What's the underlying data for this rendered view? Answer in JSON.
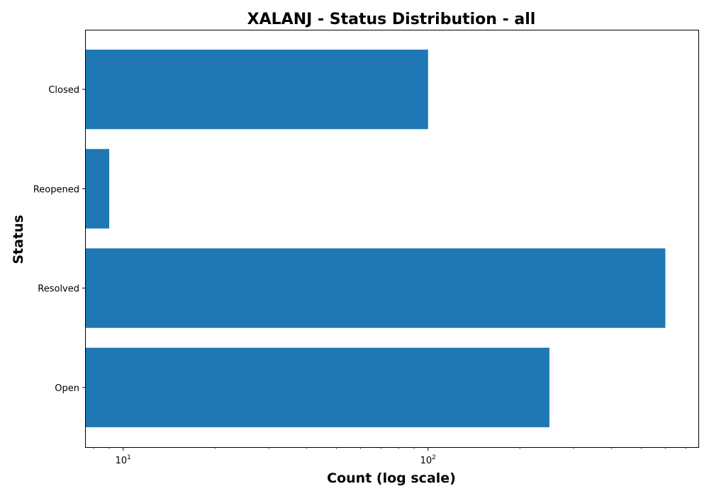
{
  "chart_data": {
    "type": "bar",
    "orientation": "horizontal",
    "title": "XALANJ - Status Distribution - all",
    "xlabel": "Count (log scale)",
    "ylabel": "Status",
    "x_scale": "log",
    "xlim": [
      7.5,
      770
    ],
    "categories": [
      "Open",
      "Resolved",
      "Reopened",
      "Closed"
    ],
    "values": [
      250,
      600,
      9,
      100
    ],
    "x_ticks": [
      {
        "value": 10,
        "base": "10",
        "exp": "1"
      },
      {
        "value": 100,
        "base": "10",
        "exp": "2"
      }
    ],
    "bar_color": "#1f77b4",
    "grid": false,
    "legend": "none"
  }
}
